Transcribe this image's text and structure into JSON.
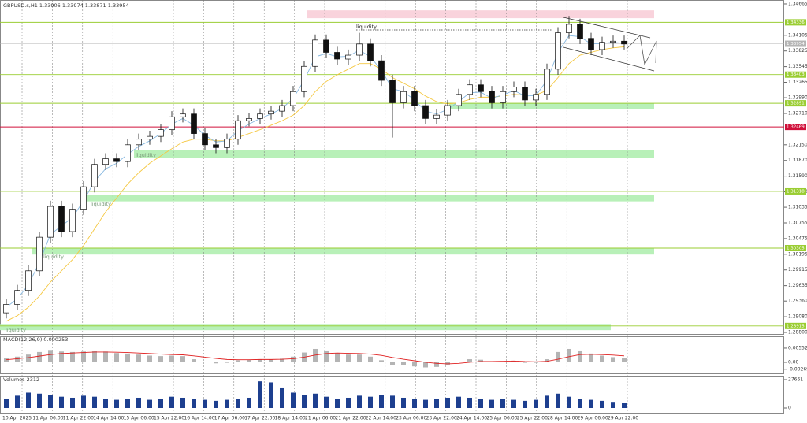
{
  "chart_data": {
    "type": "candlestick",
    "title": "GBPUSD.s,H1  1.33906 1.33974 1.33871 1.33954",
    "open": [
      1.2915,
      1.293,
      1.2955,
      1.299,
      1.305,
      1.3105,
      1.306,
      1.31,
      1.314,
      1.318,
      1.319,
      1.3185,
      1.3215,
      1.3225,
      1.323,
      1.3242,
      1.3265,
      1.327,
      1.3235,
      1.3215,
      1.321,
      1.3225,
      1.3258,
      1.3262,
      1.327,
      1.3275,
      1.3285,
      1.331,
      1.3355,
      1.3402,
      1.338,
      1.3368,
      1.3375,
      1.3395,
      1.3365,
      1.333,
      1.329,
      1.331,
      1.3285,
      1.3262,
      1.3268,
      1.3285,
      1.3305,
      1.3322,
      1.331,
      1.329,
      1.331,
      1.3318,
      1.3295,
      1.3305,
      1.335,
      1.3415,
      1.343,
      1.3405,
      1.3385,
      1.3398,
      1.34
    ],
    "high": [
      1.294,
      1.2965,
      1.3,
      1.306,
      1.3115,
      1.3115,
      1.311,
      1.315,
      1.319,
      1.32,
      1.32,
      1.3225,
      1.3235,
      1.324,
      1.3252,
      1.3275,
      1.328,
      1.328,
      1.3245,
      1.3225,
      1.3235,
      1.3268,
      1.3272,
      1.328,
      1.3285,
      1.3295,
      1.332,
      1.3365,
      1.3412,
      1.3412,
      1.339,
      1.3385,
      1.3415,
      1.3405,
      1.3375,
      1.334,
      1.332,
      1.332,
      1.3295,
      1.3278,
      1.3295,
      1.3315,
      1.3332,
      1.3332,
      1.332,
      1.332,
      1.3328,
      1.3328,
      1.3315,
      1.336,
      1.3425,
      1.3445,
      1.344,
      1.3415,
      1.3408,
      1.341,
      1.341
    ],
    "low": [
      1.2905,
      1.292,
      1.2945,
      1.298,
      1.304,
      1.305,
      1.305,
      1.309,
      1.313,
      1.317,
      1.3175,
      1.3175,
      1.3205,
      1.3215,
      1.322,
      1.3232,
      1.3255,
      1.3225,
      1.3205,
      1.32,
      1.32,
      1.3215,
      1.3248,
      1.3252,
      1.326,
      1.3265,
      1.3275,
      1.33,
      1.3345,
      1.337,
      1.3358,
      1.3358,
      1.3365,
      1.3355,
      1.332,
      1.3228,
      1.328,
      1.3275,
      1.3252,
      1.3252,
      1.3258,
      1.3275,
      1.3295,
      1.33,
      1.328,
      1.328,
      1.33,
      1.3285,
      1.3285,
      1.3295,
      1.334,
      1.3405,
      1.3395,
      1.3375,
      1.3375,
      1.3388,
      1.3385
    ],
    "close": [
      1.293,
      1.2955,
      1.299,
      1.305,
      1.3105,
      1.306,
      1.31,
      1.314,
      1.318,
      1.319,
      1.3185,
      1.3215,
      1.3225,
      1.323,
      1.3242,
      1.3265,
      1.327,
      1.3235,
      1.3215,
      1.321,
      1.3225,
      1.3258,
      1.3262,
      1.327,
      1.3275,
      1.3285,
      1.331,
      1.3355,
      1.3402,
      1.338,
      1.3368,
      1.3375,
      1.3395,
      1.3365,
      1.333,
      1.329,
      1.331,
      1.3285,
      1.3262,
      1.3268,
      1.3285,
      1.3305,
      1.3322,
      1.331,
      1.329,
      1.331,
      1.3318,
      1.3295,
      1.3305,
      1.335,
      1.3415,
      1.343,
      1.3405,
      1.3385,
      1.3398,
      1.34,
      1.3395
    ],
    "ylim": [
      1.28758,
      1.34735
    ],
    "yticks": [
      1.34665,
      1.34105,
      1.33825,
      1.33545,
      1.33265,
      {
        "value": 1.3299,
        "label": "1.32990"
      },
      {
        "value": 1.3271,
        "label": "1.32710"
      },
      {
        "value": 1.3215,
        "label": "1.32150"
      },
      {
        "value": 1.3187,
        "label": "1.31870"
      },
      {
        "value": 1.3159,
        "label": "1.31590"
      },
      {
        "value": 1.3131,
        "label": "1.31310"
      },
      1.31035,
      1.30755,
      1.30475,
      1.30195,
      1.29915,
      1.29635,
      {
        "value": 1.2936,
        "label": "1.29360"
      },
      {
        "value": 1.2908,
        "label": "1.29080"
      },
      {
        "value": 1.288,
        "label": "1.28800"
      }
    ],
    "ma_fast": {
      "color": "#87b8e0",
      "values": [
        1.2925,
        1.294,
        1.2965,
        1.3005,
        1.3055,
        1.307,
        1.3085,
        1.3115,
        1.315,
        1.3172,
        1.3182,
        1.3198,
        1.3212,
        1.3222,
        1.3235,
        1.3252,
        1.3262,
        1.325,
        1.3232,
        1.322,
        1.3222,
        1.324,
        1.3252,
        1.3262,
        1.327,
        1.328,
        1.3298,
        1.333,
        1.3372,
        1.3378,
        1.3372,
        1.3373,
        1.3384,
        1.3372,
        1.3348,
        1.3315,
        1.331,
        1.3295,
        1.3275,
        1.327,
        1.3278,
        1.3292,
        1.3308,
        1.3309,
        1.3298,
        1.3304,
        1.3312,
        1.3302,
        1.3303,
        1.333,
        1.338,
        1.341,
        1.3408,
        1.3395,
        1.3396,
        1.3398,
        1.3396
      ]
    },
    "ma_slow": {
      "color": "#f5c842",
      "values": [
        1.29,
        1.291,
        1.2925,
        1.2945,
        1.297,
        1.299,
        1.301,
        1.3035,
        1.3065,
        1.3095,
        1.312,
        1.3145,
        1.3165,
        1.3182,
        1.3195,
        1.3208,
        1.322,
        1.3225,
        1.3225,
        1.3222,
        1.3222,
        1.3228,
        1.3235,
        1.3242,
        1.325,
        1.3258,
        1.3268,
        1.3285,
        1.331,
        1.3328,
        1.334,
        1.335,
        1.336,
        1.336,
        1.335,
        1.3335,
        1.3325,
        1.3315,
        1.3302,
        1.3292,
        1.3288,
        1.329,
        1.3296,
        1.33,
        1.33,
        1.3302,
        1.3305,
        1.3304,
        1.3304,
        1.3312,
        1.3335,
        1.336,
        1.3375,
        1.338,
        1.3385,
        1.3388,
        1.339
      ]
    },
    "levels": [
      {
        "price": 1.34336,
        "color": "#9acd32"
      },
      {
        "price": 1.33403,
        "color": "#9acd32"
      },
      {
        "price": 1.32891,
        "color": "#9acd32"
      },
      {
        "price": 1.32469,
        "color": "#d0103a"
      },
      {
        "price": 1.31318,
        "color": "#9acd32"
      },
      {
        "price": 1.30305,
        "color": "#9acd32"
      },
      {
        "price": 1.28915,
        "color": "#9acd32"
      }
    ],
    "current_price": {
      "price": 1.33954,
      "color": "#b4b4b4"
    },
    "zones": [
      {
        "from": 1.3441,
        "to": 1.3455,
        "color": "#f9d3dc"
      },
      {
        "from": 1.3278,
        "to": 1.3289,
        "color": "#b8f0b8"
      },
      {
        "from": 1.3192,
        "to": 1.3206,
        "color": "#b8f0b8"
      },
      {
        "from": 1.3114,
        "to": 1.3125,
        "color": "#b8f0b8"
      },
      {
        "from": 1.3019,
        "to": 1.303,
        "color": "#b8f0b8"
      },
      {
        "from": 1.2884,
        "to": 1.2895,
        "color": "#b8f0b8"
      }
    ],
    "annotations": [
      "liquidity",
      "liquidity",
      "liquidity",
      "liquidity",
      "liquidity"
    ],
    "x_labels": [
      "10 Apr 2025",
      "11 Apr 06:00",
      "11 Apr 22:00",
      "14 Apr 14:00",
      "15 Apr 06:00",
      "15 Apr 22:00",
      "16 Apr 14:00",
      "17 Apr 06:00",
      "17 Apr 22:00",
      "18 Apr 14:00",
      "21 Apr 06:00",
      "21 Apr 22:00",
      "22 Apr 14:00",
      "23 Apr 06:00",
      "23 Apr 22:00",
      "24 Apr 14:00",
      "25 Apr 06:00",
      "25 Apr 22:00",
      "28 Apr 14:00",
      "29 Apr 06:00",
      "29 Apr 22:00"
    ],
    "macd": {
      "label": "MACD(12,26,9) 0.000253",
      "color": "#b4b4b4",
      "signal_color": "#e02020",
      "histogram": [
        0.0015,
        0.0022,
        0.003,
        0.004,
        0.0048,
        0.0042,
        0.004,
        0.0042,
        0.0045,
        0.0042,
        0.0036,
        0.0034,
        0.003,
        0.0026,
        0.0024,
        0.0026,
        0.0024,
        0.0012,
        0.0002,
        -0.0004,
        -0.0002,
        0.0008,
        0.001,
        0.0012,
        0.0012,
        0.0014,
        0.0022,
        0.0038,
        0.0052,
        0.0046,
        0.0036,
        0.003,
        0.003,
        0.0022,
        0.0008,
        -0.001,
        -0.0012,
        -0.0016,
        -0.002,
        -0.0018,
        -0.001,
        0.0002,
        0.0012,
        0.001,
        0.0002,
        0.0004,
        0.0006,
        -0.0002,
        -0.0002,
        0.0012,
        0.004,
        0.0052,
        0.0046,
        0.0034,
        0.0026,
        0.002,
        0.0016
      ],
      "signal": [
        0.001,
        0.0014,
        0.0018,
        0.0024,
        0.003,
        0.0034,
        0.0036,
        0.0038,
        0.004,
        0.004,
        0.0039,
        0.0038,
        0.0036,
        0.0034,
        0.0032,
        0.003,
        0.0029,
        0.0025,
        0.002,
        0.0015,
        0.0011,
        0.001,
        0.001,
        0.0011,
        0.0011,
        0.0012,
        0.0014,
        0.002,
        0.0028,
        0.0034,
        0.0036,
        0.0035,
        0.0034,
        0.0032,
        0.0027,
        0.0019,
        0.0012,
        0.0006,
        0,
        -0.0004,
        -0.0006,
        -0.0004,
        0,
        0.0003,
        0.0003,
        0.0004,
        0.0005,
        0.0003,
        0.0002,
        0.0004,
        0.0012,
        0.0022,
        0.003,
        0.0031,
        0.003,
        0.0028,
        0.0025
      ],
      "ylim": [
        -0.0043,
        0.0101
      ],
      "yticks": [
        0.005521,
        {
          "value": 0,
          "label": "0.00"
        },
        -0.002694
      ]
    },
    "volume": {
      "label": "Volumes 2312",
      "color": "#1d3f8f",
      "values": [
        9000,
        12000,
        15000,
        14000,
        13000,
        11000,
        10000,
        12000,
        11000,
        9000,
        8000,
        9000,
        10000,
        8000,
        9000,
        11000,
        10000,
        9000,
        8000,
        7000,
        8000,
        9000,
        10000,
        26000,
        25000,
        20000,
        15000,
        13000,
        14000,
        11000,
        9000,
        10000,
        12000,
        11000,
        13000,
        12000,
        10000,
        9000,
        8000,
        9000,
        10000,
        11000,
        10000,
        9000,
        8000,
        9000,
        8000,
        7000,
        8000,
        12000,
        14000,
        11000,
        9000,
        8000,
        7000,
        6000,
        5000
      ],
      "ylim": [
        -5380,
        31500
      ],
      "yticks": [
        27661,
        0
      ]
    }
  }
}
